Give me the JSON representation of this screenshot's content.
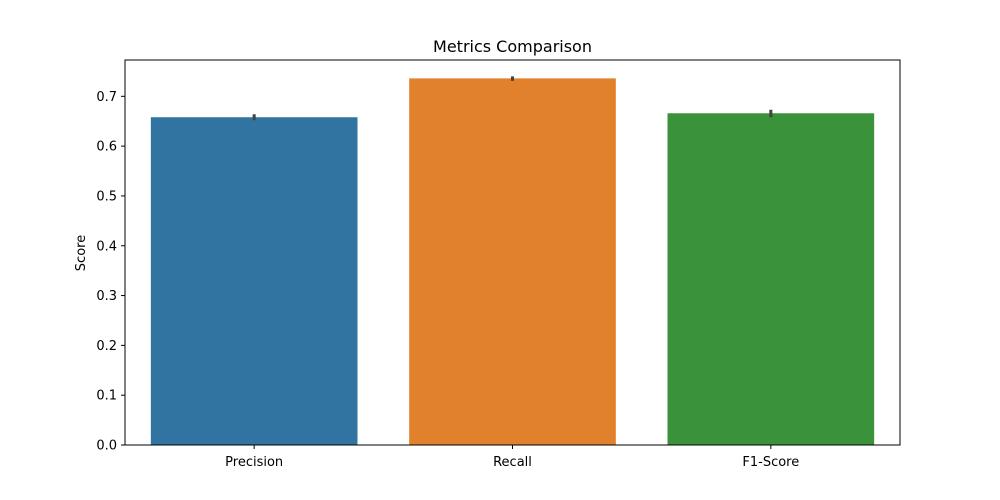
{
  "chart_data": {
    "type": "bar",
    "title": "Metrics Comparison",
    "xlabel": "",
    "ylabel": "Score",
    "categories": [
      "Precision",
      "Recall",
      "F1-Score"
    ],
    "values": [
      0.658,
      0.736,
      0.666
    ],
    "error_bars": [
      {
        "low": 0.652,
        "high": 0.664
      },
      {
        "low": 0.731,
        "high": 0.74
      },
      {
        "low": 0.658,
        "high": 0.673
      }
    ],
    "colors": [
      "#3274a1",
      "#e1812c",
      "#3a923a"
    ],
    "error_bar_color": "#424242",
    "ylim": [
      0.0,
      0.7729
    ],
    "yticks": [
      0.0,
      0.1,
      0.2,
      0.3,
      0.4,
      0.5,
      0.6,
      0.7
    ],
    "ytick_labels": [
      "0.0",
      "0.1",
      "0.2",
      "0.3",
      "0.4",
      "0.5",
      "0.6",
      "0.7"
    ],
    "grid": false,
    "legend": "none"
  }
}
